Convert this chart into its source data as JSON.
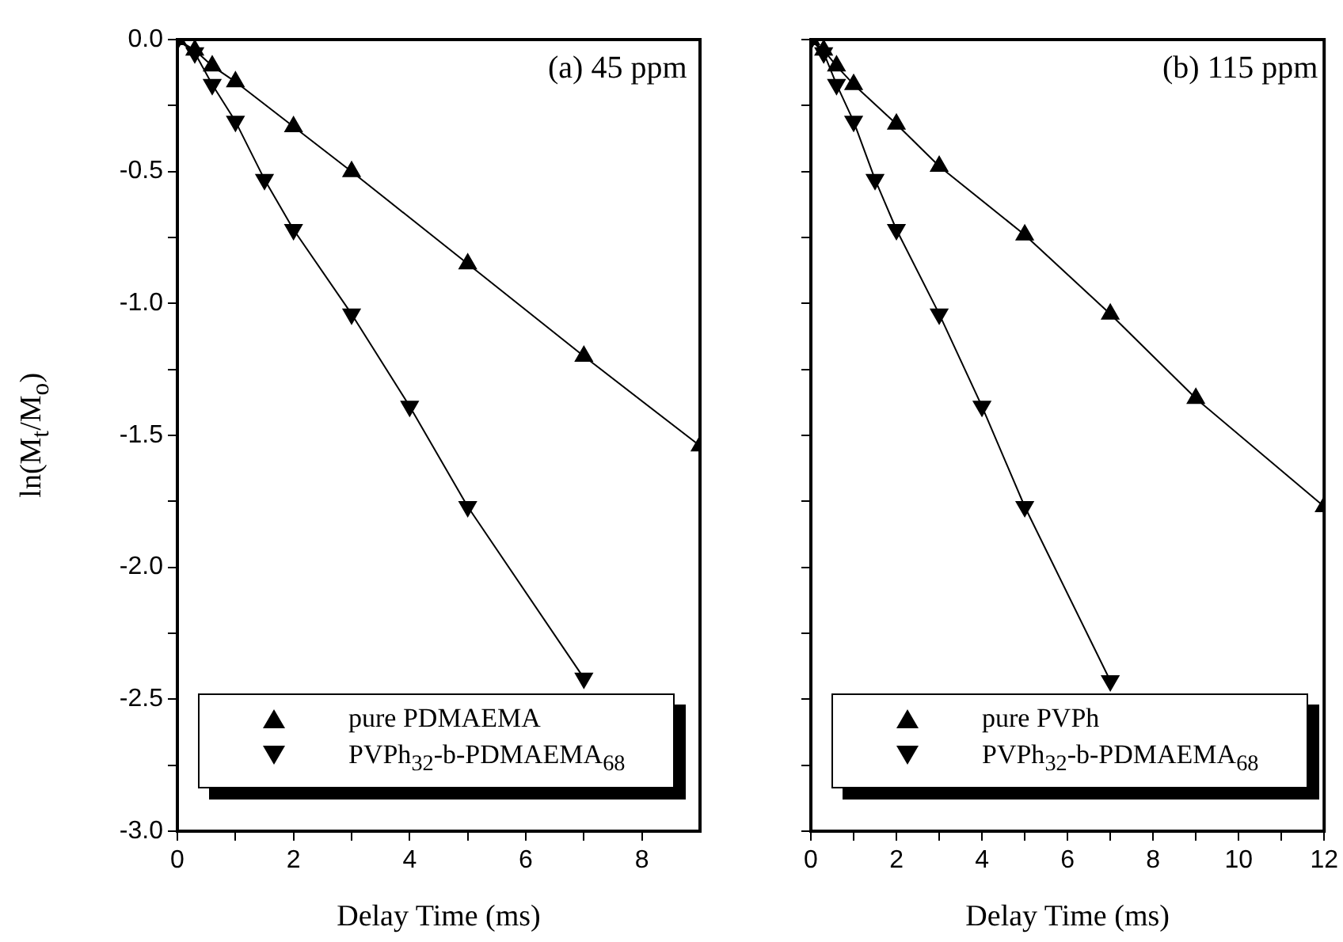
{
  "chart_data": [
    {
      "type": "line",
      "xlabel": "Delay Time (ms)",
      "ylabel": "ln(M$_{t}$/M$_{o}$)",
      "annotations": [
        "(a) 45 ppm"
      ],
      "series": [
        {
          "name": "pure PDMAEMA",
          "color": "#000000",
          "x": [
            0,
            0.3,
            0.6,
            1,
            2,
            3,
            5,
            7,
            9
          ],
          "values": [
            0,
            -0.04,
            -0.1,
            -0.16,
            -0.33,
            -0.5,
            -0.85,
            -1.2,
            -1.54
          ]
        },
        {
          "name": "PVPh$_{32}$-b-PDMAEMA$_{68}$",
          "color": "#000000",
          "x": [
            0,
            0.3,
            0.6,
            1,
            1.5,
            2,
            3,
            4,
            5,
            7
          ],
          "values": [
            0,
            -0.05,
            -0.17,
            -0.31,
            -0.53,
            -0.72,
            -1.04,
            -1.39,
            -1.77,
            -2.42
          ]
        }
      ],
      "xlim": [
        0,
        9
      ],
      "xticks": [
        0,
        {
          "value": 1,
          "label": null
        },
        2,
        {
          "value": 3,
          "label": null
        },
        4,
        {
          "value": 5,
          "label": null
        },
        6,
        {
          "value": 7,
          "label": null
        },
        8
      ],
      "ylim": [
        -3,
        0
      ],
      "yticks": [
        {
          "value": 0,
          "label": "0.0"
        },
        {
          "value": -0.25,
          "label": null
        },
        {
          "value": -0.5,
          "label": "-0.5"
        },
        {
          "value": -0.75,
          "label": null
        },
        {
          "value": -1,
          "label": "-1.0"
        },
        {
          "value": -1.25,
          "label": null
        },
        {
          "value": -1.5,
          "label": "-1.5"
        },
        {
          "value": -1.75,
          "label": null
        },
        {
          "value": -2,
          "label": "-2.0"
        },
        {
          "value": -2.25,
          "label": null
        },
        {
          "value": -2.5,
          "label": "-2.5"
        },
        {
          "value": -2.75,
          "label": null
        },
        {
          "value": -3,
          "label": "-3.0"
        }
      ],
      "grid": false,
      "legend": "bottom left",
      "marker": "triangle",
      "line_style": "solid"
    },
    {
      "type": "line",
      "xlabel": "Delay Time (ms)",
      "annotations": [
        "(b) 115 ppm"
      ],
      "series": [
        {
          "name": "pure PVPh",
          "color": "#000000",
          "x": [
            0,
            0.3,
            0.6,
            1,
            2,
            3,
            5,
            7,
            9,
            12
          ],
          "values": [
            0,
            -0.04,
            -0.1,
            -0.17,
            -0.32,
            -0.48,
            -0.74,
            -1.04,
            -1.36,
            -1.77
          ]
        },
        {
          "name": "PVPh$_{32}$-b-PDMAEMA$_{68}$",
          "color": "#000000",
          "x": [
            0,
            0.3,
            0.6,
            1,
            1.5,
            2,
            3,
            4,
            5,
            7
          ],
          "values": [
            0,
            -0.05,
            -0.17,
            -0.31,
            -0.53,
            -0.72,
            -1.04,
            -1.39,
            -1.77,
            -2.43
          ]
        }
      ],
      "xlim": [
        0,
        12
      ],
      "xticks": [
        0,
        {
          "value": 1,
          "label": null
        },
        2,
        {
          "value": 3,
          "label": null
        },
        4,
        {
          "value": 5,
          "label": null
        },
        6,
        {
          "value": 7,
          "label": null
        },
        8,
        {
          "value": 9,
          "label": null
        },
        10,
        {
          "value": 11,
          "label": null
        },
        12
      ],
      "ylim": [
        -3,
        0
      ],
      "yticks": [
        {
          "value": 0,
          "label": null
        },
        {
          "value": -0.25,
          "label": null
        },
        {
          "value": -0.5,
          "label": null
        },
        {
          "value": -0.75,
          "label": null
        },
        {
          "value": -1,
          "label": null
        },
        {
          "value": -1.25,
          "label": null
        },
        {
          "value": -1.5,
          "label": null
        },
        {
          "value": -1.75,
          "label": null
        },
        {
          "value": -2,
          "label": null
        },
        {
          "value": -2.25,
          "label": null
        },
        {
          "value": -2.5,
          "label": null
        },
        {
          "value": -2.75,
          "label": null
        },
        {
          "value": -3,
          "label": null
        }
      ],
      "tick_labels": "x",
      "grid": false,
      "legend": "bottom left",
      "marker": "triangle",
      "line_style": "solid"
    }
  ]
}
